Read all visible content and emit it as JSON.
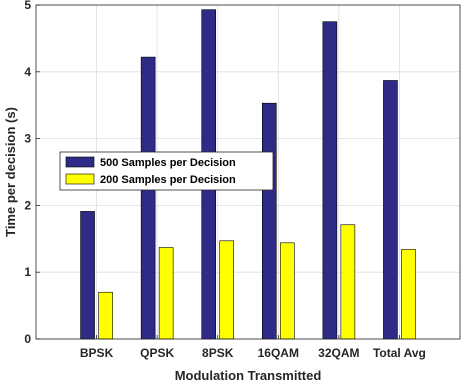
{
  "chart_data": {
    "type": "bar",
    "title": "",
    "xlabel": "Modulation Transmitted",
    "ylabel": "Time per decision (s)",
    "categories": [
      "BPSK",
      "QPSK",
      "8PSK",
      "16QAM",
      "32QAM",
      "Total Avg"
    ],
    "series": [
      {
        "name": "500 Samples per Decision",
        "values": [
          1.91,
          4.22,
          4.93,
          3.53,
          4.75,
          3.87
        ],
        "color": "#2e2b87"
      },
      {
        "name": "200 Samples per Decision",
        "values": [
          0.7,
          1.37,
          1.47,
          1.44,
          1.71,
          1.34
        ],
        "color": "#ffff00"
      }
    ],
    "ylim": [
      0,
      5
    ],
    "yticks": [
      "0",
      "1",
      "2",
      "3",
      "4",
      "5"
    ],
    "grid": true,
    "legend_position": "center-left"
  }
}
